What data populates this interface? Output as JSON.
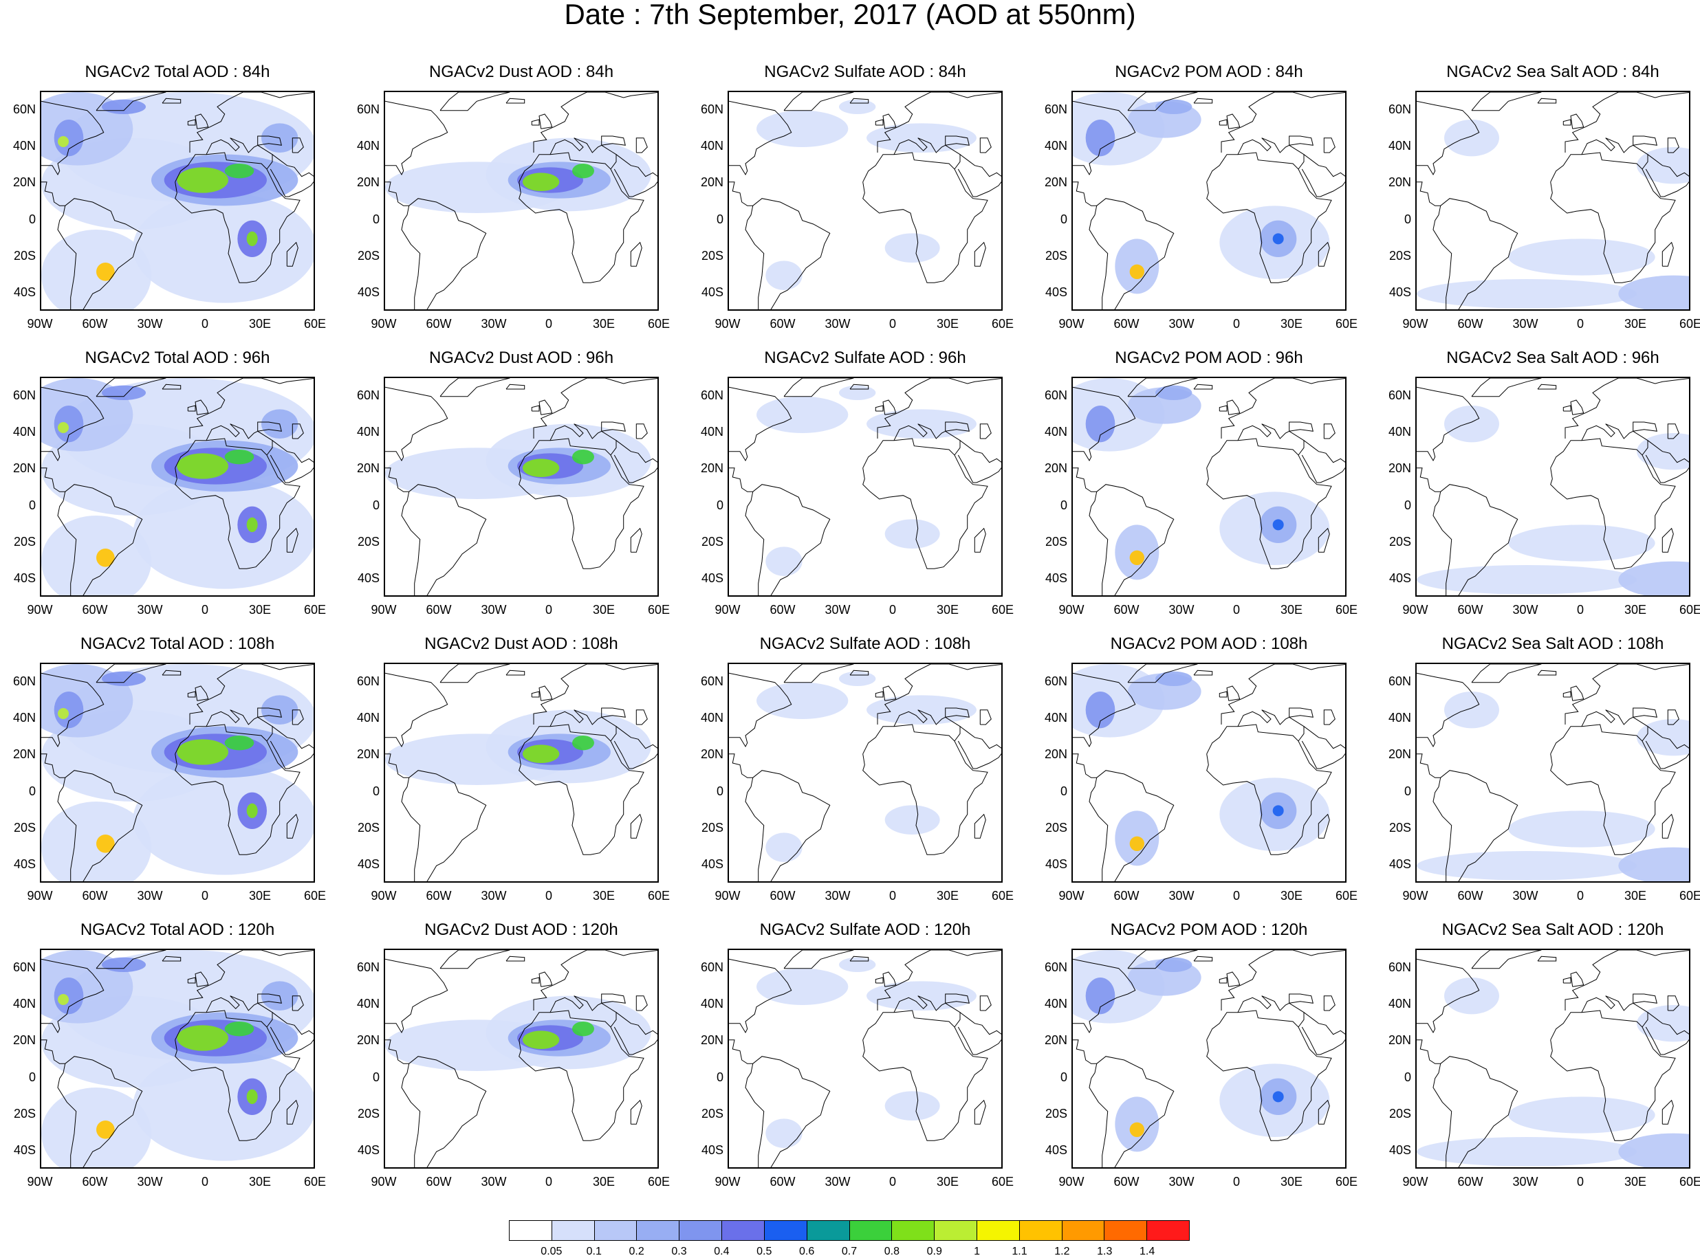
{
  "title": "Date : 7th September, 2017 (AOD at 550nm)",
  "lat_labels": [
    "60N",
    "40N",
    "20N",
    "0",
    "20S",
    "40S"
  ],
  "lon_labels": [
    "90W",
    "60W",
    "30W",
    "0",
    "30E",
    "60E"
  ],
  "panels": [
    [
      {
        "title": "NGACv2 Total AOD : 84h",
        "species": "total"
      },
      {
        "title": "NGACv2 Dust AOD : 84h",
        "species": "dust"
      },
      {
        "title": "NGACv2 Sulfate AOD : 84h",
        "species": "sulfate"
      },
      {
        "title": "NGACv2 POM AOD : 84h",
        "species": "pom"
      },
      {
        "title": "NGACv2 Sea Salt AOD : 84h",
        "species": "seasalt"
      }
    ],
    [
      {
        "title": "NGACv2 Total AOD : 96h",
        "species": "total"
      },
      {
        "title": "NGACv2 Dust AOD : 96h",
        "species": "dust"
      },
      {
        "title": "NGACv2 Sulfate AOD : 96h",
        "species": "sulfate"
      },
      {
        "title": "NGACv2 POM AOD : 96h",
        "species": "pom"
      },
      {
        "title": "NGACv2 Sea Salt AOD : 96h",
        "species": "seasalt"
      }
    ],
    [
      {
        "title": "NGACv2 Total AOD : 108h",
        "species": "total"
      },
      {
        "title": "NGACv2 Dust AOD : 108h",
        "species": "dust"
      },
      {
        "title": "NGACv2 Sulfate AOD : 108h",
        "species": "sulfate"
      },
      {
        "title": "NGACv2 POM AOD : 108h",
        "species": "pom"
      },
      {
        "title": "NGACv2 Sea Salt AOD : 108h",
        "species": "seasalt"
      }
    ],
    [
      {
        "title": "NGACv2 Total AOD : 120h",
        "species": "total"
      },
      {
        "title": "NGACv2 Dust AOD : 120h",
        "species": "dust"
      },
      {
        "title": "NGACv2 Sulfate AOD : 120h",
        "species": "sulfate"
      },
      {
        "title": "NGACv2 POM AOD : 120h",
        "species": "pom"
      },
      {
        "title": "NGACv2 Sea Salt  AOD : 120h",
        "species": "seasalt"
      }
    ]
  ],
  "colorbar": {
    "labels": [
      "0.05",
      "0.1",
      "0.2",
      "0.3",
      "0.4",
      "0.5",
      "0.6",
      "0.7",
      "0.8",
      "0.9",
      "1",
      "1.1",
      "1.2",
      "1.3",
      "1.4"
    ],
    "colors": [
      "#ffffff",
      "#d6e0fb",
      "#b8c8f7",
      "#98aef3",
      "#7f95ef",
      "#6a70ea",
      "#1a5ff0",
      "#0a9a9a",
      "#3bd03b",
      "#7fe01a",
      "#bbee33",
      "#f5f500",
      "#ffc200",
      "#ff9a00",
      "#ff6a00",
      "#ff1a1a"
    ]
  }
}
